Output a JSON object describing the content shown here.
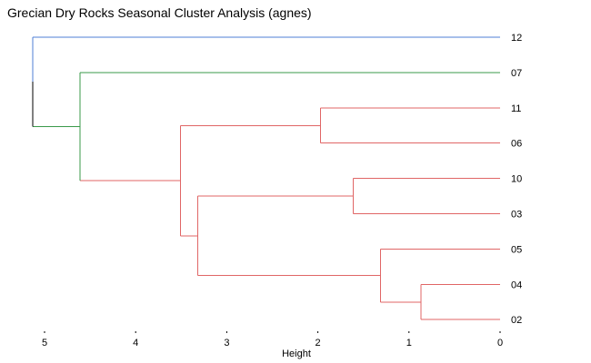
{
  "chart_data": {
    "type": "dendrogram",
    "title": "Grecian Dry Rocks Seasonal Cluster Analysis (agnes)",
    "xlabel": "Height",
    "xlim": [
      5.0,
      0.0
    ],
    "xticks": [
      5,
      4,
      3,
      2,
      1,
      0
    ],
    "grid": false,
    "leaves": [
      "12",
      "07",
      "11",
      "06",
      "10",
      "03",
      "05",
      "04",
      "02"
    ],
    "merges": [
      {
        "id": "m1",
        "left": "04",
        "right": "02",
        "height": 0.87,
        "color": "#e06666"
      },
      {
        "id": "m2",
        "left": "05",
        "right": "m1",
        "height": 1.31,
        "color": "#e06666"
      },
      {
        "id": "m3",
        "left": "10",
        "right": "03",
        "height": 1.61,
        "color": "#e06666"
      },
      {
        "id": "m4",
        "left": "11",
        "right": "06",
        "height": 1.97,
        "color": "#e06666"
      },
      {
        "id": "m5",
        "left": "m3",
        "right": "m2",
        "height": 3.32,
        "color": "#e06666"
      },
      {
        "id": "m6",
        "left": "m4",
        "right": "m5",
        "height": 3.51,
        "color": "#e06666"
      },
      {
        "id": "m7",
        "left": "07",
        "right": "m6",
        "height": 4.61,
        "color": "#3a9a4a"
      },
      {
        "id": "m8",
        "left": "12",
        "right": "m7",
        "height": 5.13,
        "color": "#000000"
      }
    ],
    "leaf_colors": {
      "12": "#4f7fd6",
      "07": "#3a9a4a",
      "11": "#e06666",
      "06": "#e06666",
      "10": "#e06666",
      "03": "#e06666",
      "05": "#e06666",
      "04": "#e06666",
      "02": "#e06666"
    }
  }
}
